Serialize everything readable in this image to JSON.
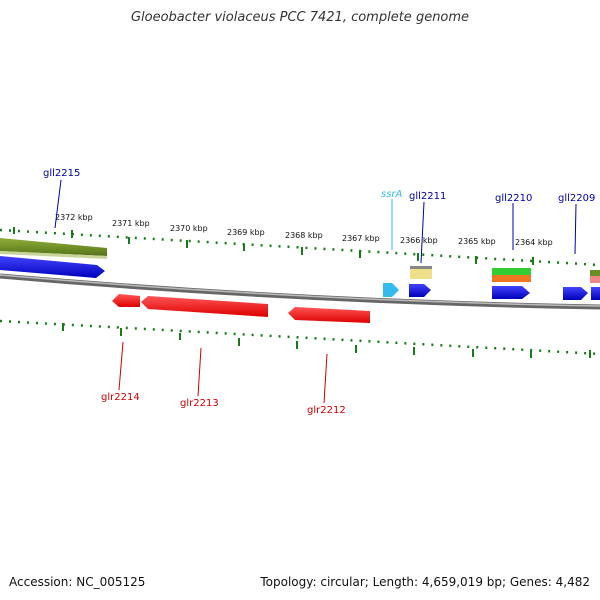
{
  "title": "Gloeobacter violaceus PCC 7421, complete genome",
  "footer": {
    "accession": "Accession: NC_005125",
    "summary": "Topology: circular; Length: 4,659,019 bp; Genes: 4,482"
  },
  "scale_labels": [
    "2372 kbp",
    "2371 kbp",
    "2370 kbp",
    "2369 kbp",
    "2368 kbp",
    "2367 kbp",
    "2366 kbp",
    "2365 kbp",
    "2364 kbp"
  ],
  "gene_labels": {
    "gll2215": "gll2215",
    "ssrA": "ssrA",
    "gll2211": "gll2211",
    "gll2210": "gll2210",
    "gll2209": "gll2209",
    "glr2214": "glr2214",
    "glr2213": "glr2213",
    "glr2212": "glr2212"
  },
  "colors": {
    "forward_gene": "#0000dd",
    "reverse_gene": "#ee0000",
    "rna_gene": "#33bbee",
    "ticks": "#1a7a1a",
    "backbone": "#888888",
    "annotation_olive": "#6b8e23",
    "annotation_khaki": "#eee08a",
    "annotation_green": "#33cc33",
    "annotation_orange": "#ee7722"
  }
}
